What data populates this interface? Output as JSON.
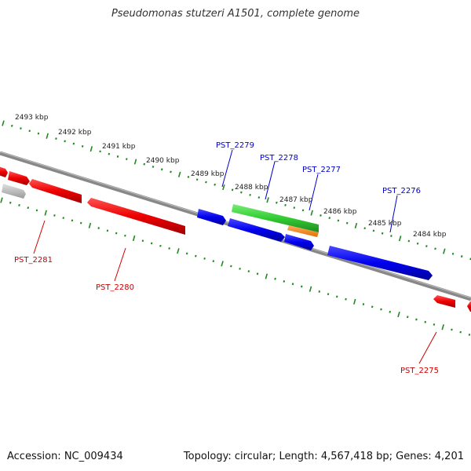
{
  "title": "Pseudomonas stutzeri A1501, complete genome",
  "footer": {
    "accession": "Accession: NC_009434",
    "summary": "Topology: circular; Length: 4,567,418 bp; Genes: 4,201"
  },
  "colors": {
    "backbone": "#888888",
    "tick": "#1f8a1f",
    "forward_label": "#0000cc",
    "reverse_label": "#cc0000",
    "forward_gene": "#0000ee",
    "reverse_gene": "#ee0000",
    "rna_green": "#33cc33",
    "rna_orange": "#ff8800",
    "other_gene": "#bbbbbb"
  },
  "scale_labels": [
    "2493 kbp",
    "2492 kbp",
    "2491 kbp",
    "2490 kbp",
    "2489 kbp",
    "2488 kbp",
    "2487 kbp",
    "2486 kbp",
    "2485 kbp",
    "2484 kbp"
  ],
  "gene_labels": {
    "PST_2279": "PST_2279",
    "PST_2278": "PST_2278",
    "PST_2277": "PST_2277",
    "PST_2276": "PST_2276",
    "PST_2281": "PST_2281",
    "PST_2280": "PST_2280",
    "PST_2275": "PST_2275"
  }
}
